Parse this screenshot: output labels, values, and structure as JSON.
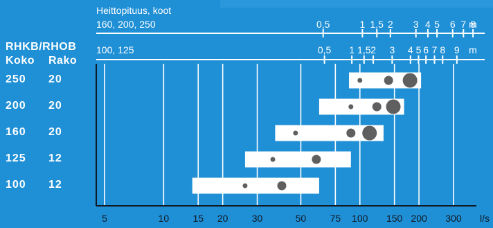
{
  "header": {
    "throw_title": "Heittopituus, koot",
    "scale_a_label": "160, 200, 250",
    "scale_b_label": "100, 125",
    "unit_m": "m",
    "model": "RHKB/RHOB",
    "col_size": "Koko",
    "col_gap": "Rako"
  },
  "chart_data": {
    "type": "range",
    "x_scale": "log",
    "x_unit": "l/s",
    "x_ticks": [
      5,
      10,
      15,
      20,
      30,
      50,
      75,
      100,
      150,
      200,
      300
    ],
    "x_tick_labels": [
      "5",
      "10",
      "15",
      "20",
      "30",
      "50",
      "75",
      "100",
      "150",
      "200",
      "300"
    ],
    "xlim": [
      4.5,
      400
    ],
    "rows": [
      {
        "size": "250",
        "gap": "20",
        "range": [
          88,
          205
        ],
        "points": [
          100,
          140,
          180
        ]
      },
      {
        "size": "200",
        "gap": "20",
        "range": [
          62,
          168
        ],
        "points": [
          90,
          122,
          148
        ]
      },
      {
        "size": "160",
        "gap": "20",
        "range": [
          37,
          132
        ],
        "points": [
          47,
          90,
          112
        ]
      },
      {
        "size": "125",
        "gap": "12",
        "range": [
          26,
          90
        ],
        "points": [
          36,
          60
        ]
      },
      {
        "size": "100",
        "gap": "12",
        "range": [
          14,
          62
        ],
        "points": [
          26,
          40
        ]
      }
    ],
    "throw_scales": [
      {
        "label": "160, 200, 250",
        "ticks": [
          {
            "m": "0,5",
            "at_flow": 65
          },
          {
            "m": "1",
            "at_flow": 103
          },
          {
            "m": "1,5",
            "at_flow": 122
          },
          {
            "m": "2",
            "at_flow": 143
          },
          {
            "m": "3",
            "at_flow": 193
          },
          {
            "m": "4",
            "at_flow": 222
          },
          {
            "m": "5",
            "at_flow": 247
          },
          {
            "m": "6",
            "at_flow": 297
          },
          {
            "m": "7",
            "at_flow": 337
          },
          {
            "m": "8",
            "at_flow": 377
          }
        ]
      },
      {
        "label": "100, 125",
        "ticks": [
          {
            "m": "0,5",
            "at_flow": 66
          },
          {
            "m": "1",
            "at_flow": 91
          },
          {
            "m": "1,5",
            "at_flow": 105
          },
          {
            "m": "2",
            "at_flow": 117
          },
          {
            "m": "3",
            "at_flow": 146
          },
          {
            "m": "4",
            "at_flow": 181
          },
          {
            "m": "5",
            "at_flow": 199
          },
          {
            "m": "6",
            "at_flow": 217
          },
          {
            "m": "7",
            "at_flow": 240
          },
          {
            "m": "8",
            "at_flow": 264
          },
          {
            "m": "9",
            "at_flow": 312
          }
        ]
      }
    ]
  }
}
